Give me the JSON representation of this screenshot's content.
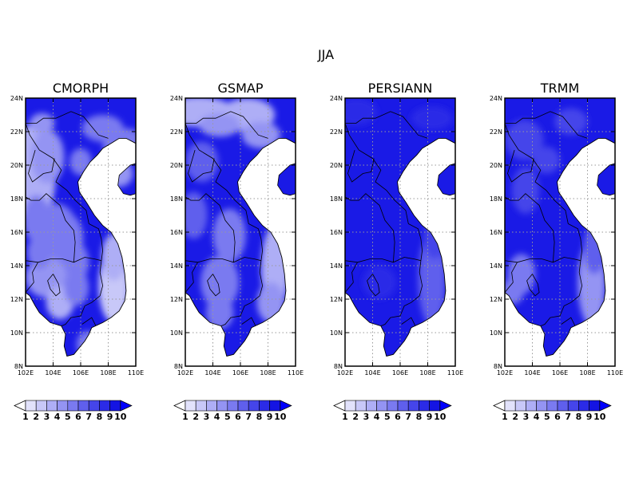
{
  "figure": {
    "title": "JJA"
  },
  "panels": [
    {
      "title": "CMORPH"
    },
    {
      "title": "GSMAP"
    },
    {
      "title": "PERSIANN"
    },
    {
      "title": "TRMM"
    }
  ],
  "axes": {
    "lat_ticks": [
      "24N",
      "22N",
      "20N",
      "18N",
      "16N",
      "14N",
      "12N",
      "10N",
      "8N"
    ],
    "lon_ticks": [
      "102E",
      "104E",
      "106E",
      "108E",
      "110E"
    ]
  },
  "colorbar": {
    "labels": [
      "1",
      "2",
      "3",
      "4",
      "5",
      "6",
      "7",
      "8",
      "9",
      "10"
    ],
    "colors": [
      "#ffffff",
      "#e2e2fb",
      "#c8c8f8",
      "#aeaef6",
      "#9494f3",
      "#7a7af0",
      "#5f5fed",
      "#4545ea",
      "#2b2be7",
      "#1414e3",
      "#0000ff"
    ]
  },
  "colors": {
    "ocean": "#ffffff",
    "deep": "#1a1ae6",
    "border": "#000000",
    "grid": "#9a9a9a"
  }
}
